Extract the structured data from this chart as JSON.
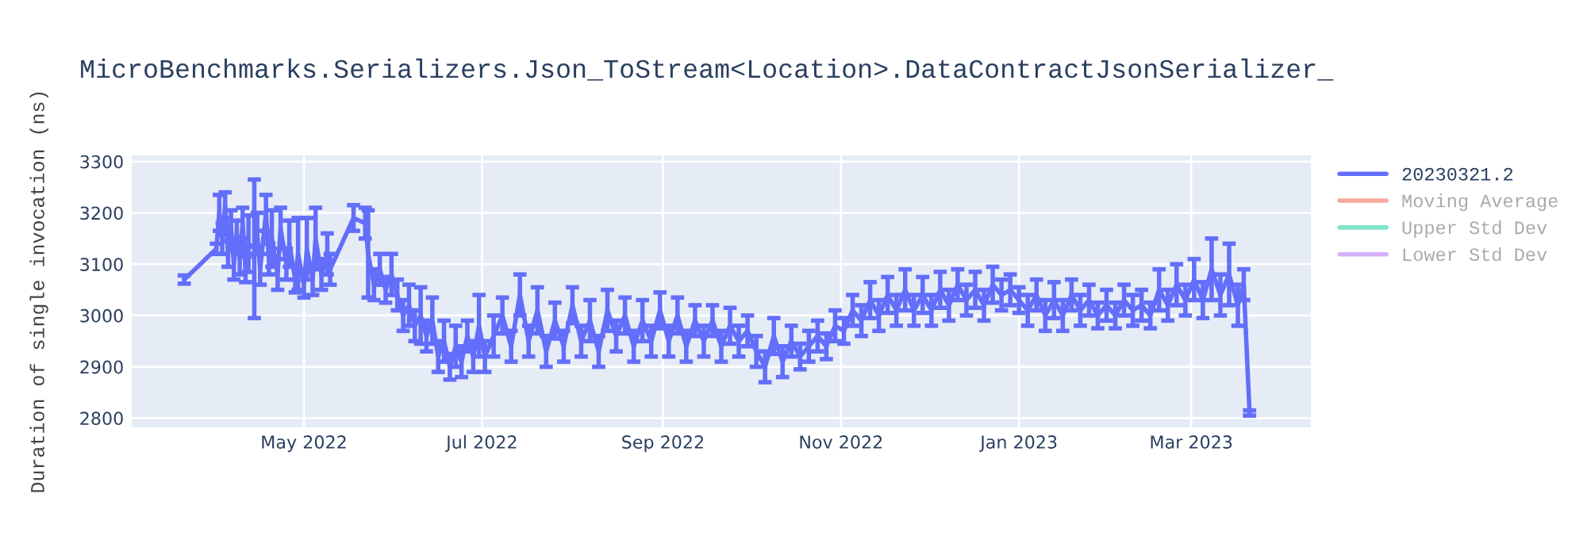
{
  "chart_data": {
    "type": "line",
    "title": "MicroBenchmarks.Serializers.Json_ToStream<Location>.DataContractJsonSerializer_",
    "ylabel": "Duration of single invocation (ns)",
    "xlim": [
      "2022-03-03",
      "2023-04-11"
    ],
    "ylim": [
      2782,
      3312
    ],
    "xticks": [
      {
        "value": "2022-05-01",
        "label": "May 2022"
      },
      {
        "value": "2022-07-01",
        "label": "Jul 2022"
      },
      {
        "value": "2022-09-01",
        "label": "Sep 2022"
      },
      {
        "value": "2022-11-01",
        "label": "Nov 2022"
      },
      {
        "value": "2023-01-01",
        "label": "Jan 2023"
      },
      {
        "value": "2023-03-01",
        "label": "Mar 2023"
      }
    ],
    "yticks": [
      2800,
      2900,
      3000,
      3100,
      3200,
      3300
    ],
    "grid": true,
    "legend": "right",
    "marker": "none",
    "line_style": "solid",
    "x": [
      "2022-03-21",
      "2022-04-01",
      "2022-04-02",
      "2022-04-03",
      "2022-04-04",
      "2022-04-05",
      "2022-04-06",
      "2022-04-07",
      "2022-04-08",
      "2022-04-09",
      "2022-04-10",
      "2022-04-11",
      "2022-04-12",
      "2022-04-14",
      "2022-04-15",
      "2022-04-16",
      "2022-04-18",
      "2022-04-19",
      "2022-04-20",
      "2022-04-22",
      "2022-04-23",
      "2022-04-25",
      "2022-04-26",
      "2022-04-28",
      "2022-04-29",
      "2022-05-01",
      "2022-05-02",
      "2022-05-04",
      "2022-05-05",
      "2022-05-07",
      "2022-05-09",
      "2022-05-10",
      "2022-05-18",
      "2022-05-22",
      "2022-05-23",
      "2022-05-25",
      "2022-05-27",
      "2022-05-29",
      "2022-05-31",
      "2022-06-02",
      "2022-06-04",
      "2022-06-06",
      "2022-06-08",
      "2022-06-10",
      "2022-06-12",
      "2022-06-14",
      "2022-06-16",
      "2022-06-18",
      "2022-06-20",
      "2022-06-22",
      "2022-06-24",
      "2022-06-26",
      "2022-06-28",
      "2022-06-30",
      "2022-07-02",
      "2022-07-05",
      "2022-07-08",
      "2022-07-11",
      "2022-07-14",
      "2022-07-17",
      "2022-07-20",
      "2022-07-23",
      "2022-07-26",
      "2022-07-29",
      "2022-08-01",
      "2022-08-04",
      "2022-08-07",
      "2022-08-10",
      "2022-08-13",
      "2022-08-16",
      "2022-08-19",
      "2022-08-22",
      "2022-08-25",
      "2022-08-28",
      "2022-08-31",
      "2022-09-03",
      "2022-09-06",
      "2022-09-09",
      "2022-09-12",
      "2022-09-15",
      "2022-09-18",
      "2022-09-21",
      "2022-09-24",
      "2022-09-27",
      "2022-09-30",
      "2022-10-03",
      "2022-10-06",
      "2022-10-09",
      "2022-10-12",
      "2022-10-15",
      "2022-10-18",
      "2022-10-21",
      "2022-10-24",
      "2022-10-27",
      "2022-10-30",
      "2022-11-02",
      "2022-11-05",
      "2022-11-08",
      "2022-11-11",
      "2022-11-14",
      "2022-11-17",
      "2022-11-20",
      "2022-11-23",
      "2022-11-26",
      "2022-11-29",
      "2022-12-02",
      "2022-12-05",
      "2022-12-08",
      "2022-12-11",
      "2022-12-14",
      "2022-12-17",
      "2022-12-20",
      "2022-12-23",
      "2022-12-26",
      "2022-12-29",
      "2023-01-01",
      "2023-01-04",
      "2023-01-07",
      "2023-01-10",
      "2023-01-13",
      "2023-01-16",
      "2023-01-19",
      "2023-01-22",
      "2023-01-25",
      "2023-01-28",
      "2023-01-31",
      "2023-02-03",
      "2023-02-06",
      "2023-02-09",
      "2023-02-12",
      "2023-02-15",
      "2023-02-18",
      "2023-02-21",
      "2023-02-24",
      "2023-02-27",
      "2023-03-02",
      "2023-03-05",
      "2023-03-08",
      "2023-03-11",
      "2023-03-14",
      "2023-03-17",
      "2023-03-19",
      "2023-03-21"
    ],
    "series": [
      {
        "name": "20230321.2",
        "color": "#636efa",
        "values": [
          3070,
          3130,
          3200,
          3150,
          3215,
          3120,
          3175,
          3100,
          3160,
          3110,
          3180,
          3090,
          3140,
          3130,
          3160,
          3090,
          3200,
          3110,
          3150,
          3080,
          3170,
          3100,
          3140,
          3070,
          3120,
          3060,
          3130,
          3070,
          3150,
          3080,
          3120,
          3090,
          3190,
          3180,
          3120,
          3060,
          3090,
          3050,
          3080,
          3040,
          3000,
          3020,
          2980,
          3000,
          2960,
          2990,
          2920,
          2950,
          2900,
          2940,
          2910,
          2960,
          2920,
          2980,
          2920,
          2960,
          3000,
          2940,
          3040,
          2950,
          3010,
          2930,
          2990,
          2940,
          3020,
          2950,
          2990,
          2930,
          3010,
          2960,
          3000,
          2940,
          2990,
          2950,
          3010,
          2950,
          3000,
          2940,
          2990,
          2950,
          2990,
          2940,
          2980,
          2950,
          2970,
          2930,
          2900,
          2960,
          2910,
          2950,
          2920,
          2940,
          2960,
          2940,
          2980,
          2970,
          3010,
          2990,
          3030,
          3000,
          3040,
          3010,
          3050,
          3010,
          3040,
          3010,
          3050,
          3020,
          3060,
          3030,
          3050,
          3020,
          3060,
          3040,
          3050,
          3030,
          3010,
          3040,
          3000,
          3030,
          3000,
          3040,
          3010,
          3030,
          3000,
          3020,
          3000,
          3030,
          3010,
          3020,
          3000,
          3050,
          3020,
          3060,
          3030,
          3070,
          3030,
          3090,
          3040,
          3080,
          3020,
          3060,
          2810
        ],
        "errors": [
          8,
          10,
          35,
          30,
          25,
          25,
          30,
          30,
          25,
          30,
          30,
          25,
          55,
          135,
          40,
          30,
          35,
          30,
          55,
          30,
          40,
          30,
          45,
          25,
          70,
          25,
          60,
          30,
          60,
          30,
          40,
          30,
          25,
          30,
          85,
          30,
          30,
          25,
          40,
          30,
          30,
          40,
          30,
          55,
          30,
          45,
          30,
          40,
          25,
          40,
          30,
          30,
          30,
          60,
          30,
          40,
          35,
          30,
          40,
          30,
          45,
          30,
          35,
          30,
          35,
          30,
          40,
          30,
          40,
          30,
          35,
          30,
          40,
          30,
          35,
          30,
          35,
          30,
          30,
          30,
          30,
          30,
          35,
          30,
          30,
          30,
          30,
          35,
          30,
          30,
          25,
          30,
          30,
          25,
          30,
          25,
          30,
          30,
          35,
          30,
          35,
          30,
          40,
          30,
          35,
          30,
          35,
          30,
          30,
          30,
          35,
          30,
          35,
          30,
          30,
          25,
          30,
          30,
          30,
          35,
          30,
          30,
          30,
          30,
          25,
          30,
          25,
          30,
          30,
          30,
          25,
          40,
          30,
          40,
          30,
          40,
          35,
          60,
          40,
          60,
          40,
          30,
          5
        ]
      },
      {
        "name": "Moving Average",
        "color": "#ef553b",
        "values": [
          null,
          null,
          null,
          null,
          null,
          null,
          null,
          null,
          null,
          null,
          null,
          null,
          null,
          null,
          null,
          null,
          null,
          null,
          null,
          null,
          null,
          null,
          null,
          null,
          null,
          null,
          null,
          null,
          null,
          null,
          null,
          null,
          null,
          null,
          null,
          null,
          null,
          null,
          null,
          null,
          null,
          null,
          null,
          null,
          null,
          null,
          null,
          null,
          null,
          null,
          null,
          null,
          null,
          null,
          null,
          null,
          null,
          null,
          null,
          null,
          null,
          null,
          null,
          null,
          null,
          null,
          null,
          null,
          null,
          null,
          null,
          null,
          null,
          null,
          null,
          null,
          null,
          null,
          null,
          null,
          null,
          null,
          null,
          null,
          null,
          null,
          null,
          null,
          null,
          null,
          null,
          null,
          null,
          null,
          null,
          null,
          null,
          null,
          null,
          null,
          null,
          null,
          null,
          null,
          null,
          null,
          null,
          null,
          null,
          null,
          null,
          null,
          null,
          null,
          null,
          null,
          null,
          null,
          null,
          null,
          null,
          null,
          null,
          null,
          null,
          null,
          null,
          null,
          null,
          null,
          null,
          null,
          null,
          null,
          null,
          null,
          null,
          null,
          null,
          null,
          null,
          null,
          null
        ]
      },
      {
        "name": "Upper Std Dev",
        "color": "#00cc96",
        "values": [
          null,
          null,
          null,
          null,
          null,
          null,
          null,
          null,
          null,
          null,
          null,
          null,
          null,
          null,
          null,
          null,
          null,
          null,
          null,
          null,
          null,
          null,
          null,
          null,
          null,
          null,
          null,
          null,
          null,
          null,
          null,
          null,
          null,
          null,
          null,
          null,
          null,
          null,
          null,
          null,
          null,
          null,
          null,
          null,
          null,
          null,
          null,
          null,
          null,
          null,
          null,
          null,
          null,
          null,
          null,
          null,
          null,
          null,
          null,
          null,
          null,
          null,
          null,
          null,
          null,
          null,
          null,
          null,
          null,
          null,
          null,
          null,
          null,
          null,
          null,
          null,
          null,
          null,
          null,
          null,
          null,
          null,
          null,
          null,
          null,
          null,
          null,
          null,
          null,
          null,
          null,
          null,
          null,
          null,
          null,
          null,
          null,
          null,
          null,
          null,
          null,
          null,
          null,
          null,
          null,
          null,
          null,
          null,
          null,
          null,
          null,
          null,
          null,
          null,
          null,
          null,
          null,
          null,
          null,
          null,
          null,
          null,
          null,
          null,
          null,
          null,
          null,
          null,
          null,
          null,
          null,
          null,
          null,
          null,
          null,
          null,
          null,
          null,
          null,
          null,
          null,
          null,
          null
        ]
      },
      {
        "name": "Lower Std Dev",
        "color": "#ab63fa",
        "values": [
          null,
          null,
          null,
          null,
          null,
          null,
          null,
          null,
          null,
          null,
          null,
          null,
          null,
          null,
          null,
          null,
          null,
          null,
          null,
          null,
          null,
          null,
          null,
          null,
          null,
          null,
          null,
          null,
          null,
          null,
          null,
          null,
          null,
          null,
          null,
          null,
          null,
          null,
          null,
          null,
          null,
          null,
          null,
          null,
          null,
          null,
          null,
          null,
          null,
          null,
          null,
          null,
          null,
          null,
          null,
          null,
          null,
          null,
          null,
          null,
          null,
          null,
          null,
          null,
          null,
          null,
          null,
          null,
          null,
          null,
          null,
          null,
          null,
          null,
          null,
          null,
          null,
          null,
          null,
          null,
          null,
          null,
          null,
          null,
          null,
          null,
          null,
          null,
          null,
          null,
          null,
          null,
          null,
          null,
          null,
          null,
          null,
          null,
          null,
          null,
          null,
          null,
          null,
          null,
          null,
          null,
          null,
          null,
          null,
          null,
          null,
          null,
          null,
          null,
          null,
          null,
          null,
          null,
          null,
          null,
          null,
          null,
          null,
          null,
          null,
          null,
          null,
          null,
          null,
          null,
          null,
          null,
          null,
          null,
          null,
          null,
          null,
          null,
          null,
          null,
          null,
          null,
          null
        ]
      }
    ]
  }
}
